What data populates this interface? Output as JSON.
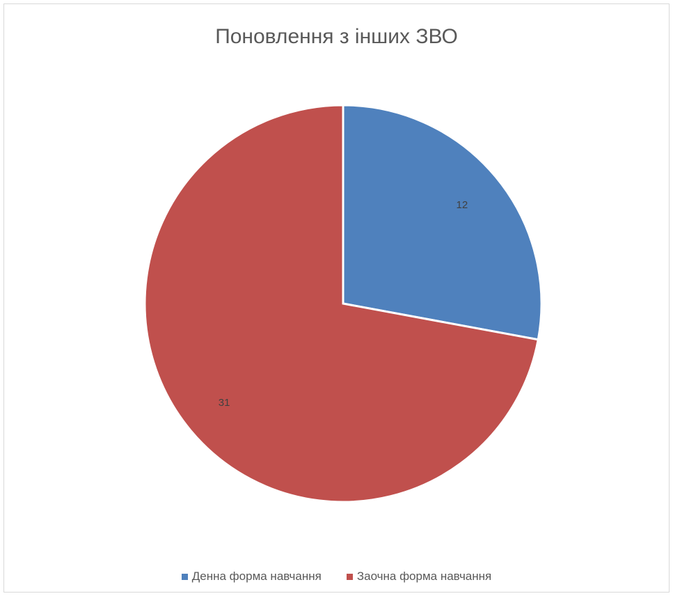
{
  "chart_data": {
    "type": "pie",
    "title": "Поновлення з інших ЗВО",
    "categories": [
      "Денна форма навчання",
      "Заочна форма навчання"
    ],
    "values": [
      12,
      31
    ],
    "colors": [
      "#4F81BD",
      "#C0504D"
    ],
    "data_labels": [
      "12",
      "31"
    ],
    "legend_position": "bottom",
    "start_angle": "12 o'clock",
    "direction": "clockwise"
  },
  "legend": {
    "items": [
      {
        "label": "Денна форма навчання",
        "color": "#4F81BD"
      },
      {
        "label": "Заочна форма навчання",
        "color": "#C0504D"
      }
    ]
  }
}
